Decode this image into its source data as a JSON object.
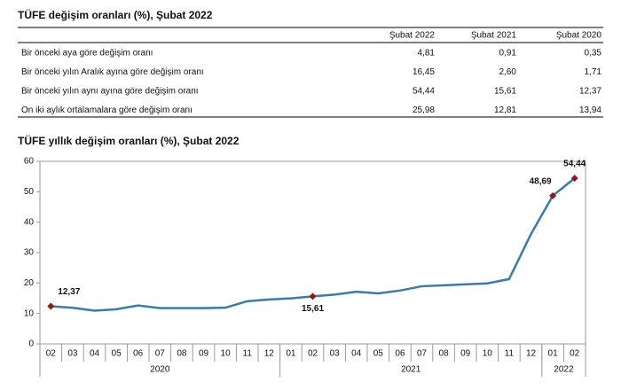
{
  "table": {
    "title": "TÜFE değişim oranları (%), Şubat 2022",
    "columns": [
      "Şubat 2022",
      "Şubat 2021",
      "Şubat 2020"
    ],
    "rows": [
      [
        "Bir önceki aya göre değişim oranı",
        "4,81",
        "0,91",
        "0,35"
      ],
      [
        "Bir önceki yılın Aralık ayına göre değişim oranı",
        "16,45",
        "2,60",
        "1,71"
      ],
      [
        "Bir önceki yılın aynı ayına göre değişim oranı",
        "54,44",
        "15,61",
        "12,37"
      ],
      [
        "On iki aylık ortalamalara göre değişim oranı",
        "25,98",
        "12,81",
        "13,94"
      ]
    ]
  },
  "chart_data": {
    "type": "line",
    "title": "TÜFE yıllık değişim oranları (%), Şubat 2022",
    "groups": [
      {
        "name": "2020",
        "categories": [
          "02",
          "03",
          "04",
          "05",
          "06",
          "07",
          "08",
          "09",
          "10",
          "11",
          "12"
        ]
      },
      {
        "name": "2021",
        "categories": [
          "01",
          "02",
          "03",
          "04",
          "05",
          "06",
          "07",
          "08",
          "09",
          "10",
          "11",
          "12"
        ]
      },
      {
        "name": "2022",
        "categories": [
          "01",
          "02"
        ]
      }
    ],
    "series": [
      {
        "color": "#3a7ca5",
        "marker_color": "#8b1a1a",
        "values": [
          12.37,
          11.86,
          10.94,
          11.39,
          12.62,
          11.76,
          11.77,
          11.75,
          11.89,
          14.03,
          14.6,
          14.97,
          15.61,
          16.19,
          17.14,
          16.59,
          17.53,
          18.95,
          19.25,
          19.58,
          19.89,
          21.31,
          36.08,
          48.69,
          54.44
        ],
        "value_labels": [
          "12,37",
          null,
          null,
          null,
          null,
          null,
          null,
          null,
          null,
          null,
          null,
          null,
          "15,61",
          null,
          null,
          null,
          null,
          null,
          null,
          null,
          null,
          null,
          null,
          "48,69",
          "54,44"
        ]
      }
    ],
    "ylim": [
      0,
      60
    ],
    "yticks": [
      0,
      10,
      20,
      30,
      40,
      50,
      60
    ],
    "grid": false
  }
}
